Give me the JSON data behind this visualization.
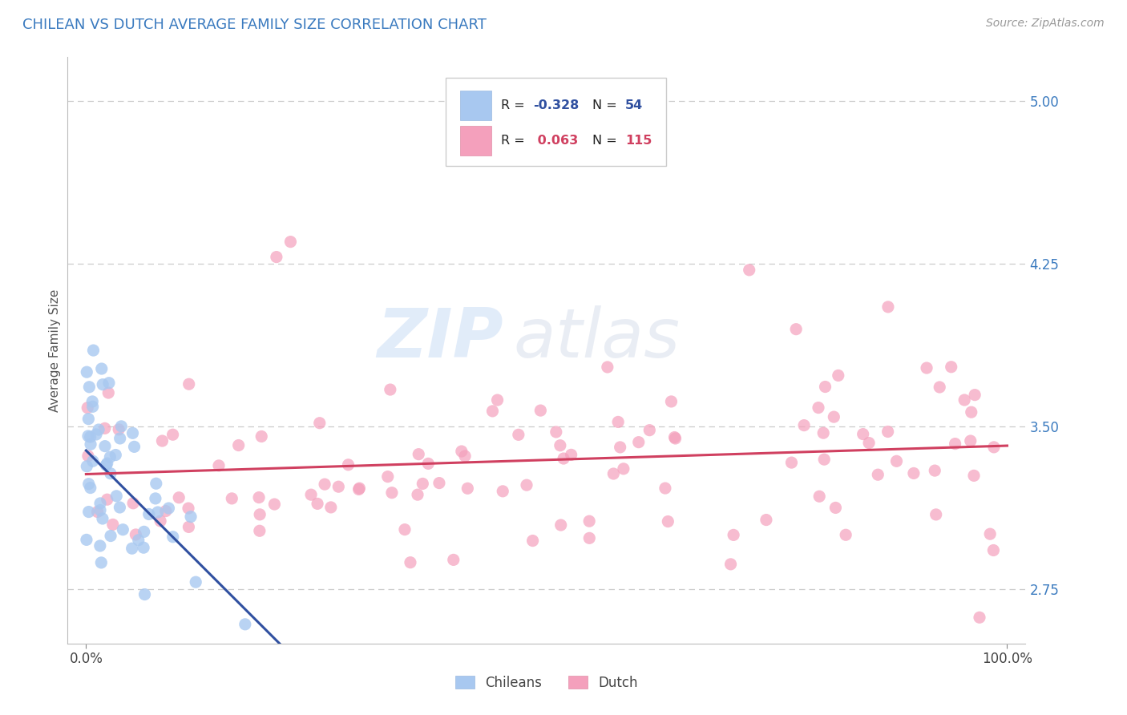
{
  "title": "CHILEAN VS DUTCH AVERAGE FAMILY SIZE CORRELATION CHART",
  "title_color": "#3a7abf",
  "source_text": "Source: ZipAtlas.com",
  "ylabel": "Average Family Size",
  "watermark_zip": "ZIP",
  "watermark_atlas": "atlas",
  "legend_labels": [
    "Chileans",
    "Dutch"
  ],
  "chilean_color": "#a8c8f0",
  "dutch_color": "#f4a0bc",
  "chilean_line_color": "#3050a0",
  "dutch_line_color": "#d04060",
  "dashed_line_color": "#aaaaaa",
  "y_ticks": [
    2.75,
    3.5,
    4.25,
    5.0
  ],
  "y_tick_labels": [
    "2.75",
    "3.50",
    "4.25",
    "5.00"
  ],
  "y_tick_color": "#3a7abf",
  "xlim": [
    -0.02,
    1.02
  ],
  "ylim": [
    2.5,
    5.2
  ],
  "background_color": "#ffffff",
  "grid_color": "#cccccc",
  "r_chilean": "-0.328",
  "n_chilean": "54",
  "r_dutch": "0.063",
  "n_dutch": "115"
}
